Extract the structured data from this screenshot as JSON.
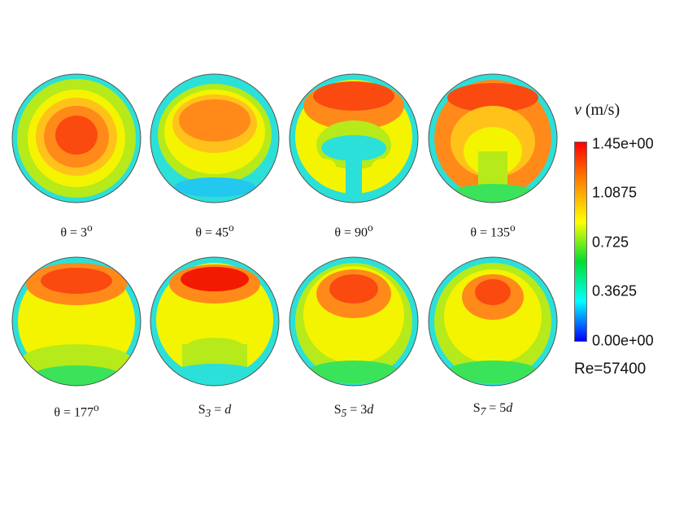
{
  "panels": [
    {
      "id": "p1",
      "label": "θ = 3",
      "sup": "o",
      "pattern": "center"
    },
    {
      "id": "p2",
      "label": "θ = 45",
      "sup": "o",
      "pattern": "upper-broad"
    },
    {
      "id": "p3",
      "label": "θ = 90",
      "sup": "o",
      "pattern": "ring-mushroom"
    },
    {
      "id": "p4",
      "label": "θ = 135",
      "sup": "o",
      "pattern": "ring"
    },
    {
      "id": "p5",
      "label": "θ = 177",
      "sup": "o",
      "pattern": "top-band"
    },
    {
      "id": "p6",
      "sub": "3",
      "rhs": "d",
      "rhs_prefix": "",
      "pattern": "top-strong"
    },
    {
      "id": "p7",
      "sub": "5",
      "rhs": "d",
      "rhs_prefix": "3",
      "pattern": "upper-center"
    },
    {
      "id": "p8",
      "sub": "7",
      "rhs": "d",
      "rhs_prefix": "5",
      "pattern": "upper-small"
    }
  ],
  "s_letter": "S",
  "legend": {
    "variable": "v",
    "unit": "(m/s)",
    "ticks": [
      "1.45e+00",
      "1.0875",
      "0.725",
      "0.3625",
      "0.00e+00"
    ],
    "colors": [
      "#ff0000",
      "#ff8800",
      "#ffff00",
      "#00dd33",
      "#00ffff",
      "#0000ff"
    ]
  },
  "reynolds": "Re=57400"
}
